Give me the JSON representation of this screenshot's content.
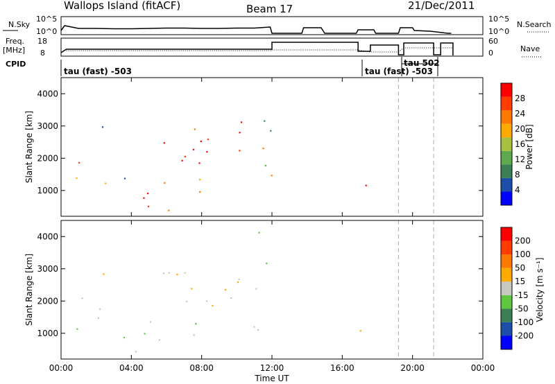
{
  "header": {
    "station": "Wallops Island (fitACF)",
    "beam": "Beam 17",
    "date": "21/Dec/2011"
  },
  "strips": {
    "nsky_label": "N.Sky",
    "nsky_ticks": [
      "10^5",
      "10^0"
    ],
    "nsearch_label": "N.Search",
    "nsearch_ticks": [
      "10^5",
      "10^0"
    ],
    "freq_label": "Freq.",
    "freq_unit": "[MHz]",
    "freq_ticks": [
      "18",
      "8"
    ],
    "nave_label": "Nave",
    "nave_ticks": [
      "60",
      "0"
    ],
    "cpid_label": "CPID",
    "cpid_annotations": [
      "tau (fast) -503",
      "tau (fast) -503",
      "tau 502"
    ]
  },
  "colors": {
    "power_scale": [
      "#0000ff",
      "#1d4faa",
      "#3b7f55",
      "#5fa84d",
      "#a8c040",
      "#ffaa00",
      "#ff7a00",
      "#ff3b00",
      "#ff0000"
    ],
    "velocity_scale": [
      "#0000ff",
      "#1d4faa",
      "#3b7f55",
      "#5fc83f",
      "#c8c8c0",
      "#ffaa00",
      "#ff7a00",
      "#ff3b00",
      "#ff0000"
    ],
    "ground_scatter": "#c8c8c0"
  },
  "chart_data": [
    {
      "type": "heatmap",
      "name": "power",
      "ylabel": "Slant Range [km]",
      "y_ticks": [
        "1000",
        "2000",
        "3000",
        "4000"
      ],
      "ylim": [
        200,
        4500
      ],
      "xlim": [
        0,
        24
      ],
      "colorbar_label": "Power [dB]",
      "colorbar_ticks": [
        "4",
        "8",
        "12",
        "16",
        "20",
        "24",
        "28"
      ],
      "colorbar_range": [
        0,
        32
      ]
    },
    {
      "type": "heatmap",
      "name": "velocity",
      "ylabel": "Slant Range [km]",
      "y_ticks": [
        "1000",
        "2000",
        "3000",
        "4000"
      ],
      "ylim": [
        200,
        4500
      ],
      "xlim": [
        0,
        24
      ],
      "colorbar_label": "Velocity [m s⁻¹]",
      "colorbar_ticks": [
        "200",
        "100",
        "50",
        "15",
        "-15",
        "-50",
        "-100",
        "-200"
      ],
      "colorbar_range": [
        -250,
        250
      ]
    }
  ],
  "x_axis": {
    "label": "Time UT",
    "ticks": [
      "00:00",
      "04:00",
      "08:00",
      "12:00",
      "16:00",
      "20:00",
      "00:00"
    ]
  }
}
